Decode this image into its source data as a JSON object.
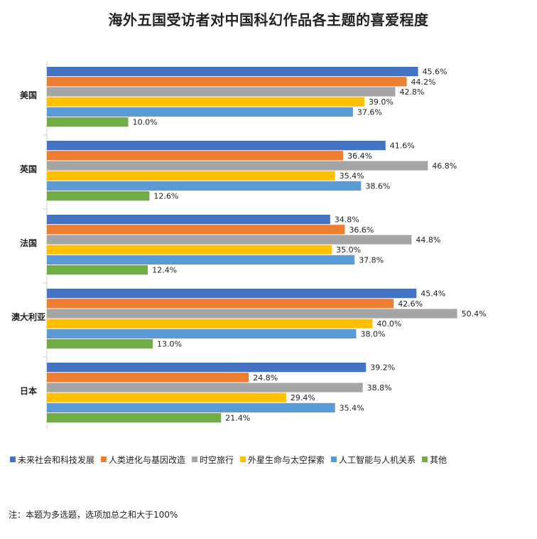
{
  "chart_data": {
    "type": "bar",
    "orientation": "horizontal",
    "title": "海外五国受访者对中国科幻作品各主题的喜爱程度",
    "categories": [
      "美国",
      "英国",
      "法国",
      "澳大利亚",
      "日本"
    ],
    "series": [
      {
        "name": "未来社会和科技发展",
        "color": "#4472C4",
        "values": [
          45.6,
          41.6,
          34.8,
          45.4,
          39.2
        ],
        "labels": [
          "45.6%",
          "41.6%",
          "34.8%",
          "45.4%",
          "39.2%"
        ]
      },
      {
        "name": "人类进化与基因改造",
        "color": "#ED7D31",
        "values": [
          44.2,
          36.4,
          36.6,
          42.6,
          24.8
        ],
        "labels": [
          "44.2%",
          "36.4%",
          "36.6%",
          "42.6%",
          "24.8%"
        ]
      },
      {
        "name": "时空旅行",
        "color": "#A5A5A5",
        "values": [
          42.8,
          46.8,
          44.8,
          50.4,
          38.8
        ],
        "labels": [
          "42.8%",
          "46.8%",
          "44.8%",
          "50.4%",
          "38.8%"
        ]
      },
      {
        "name": "外星生命与太空探索",
        "color": "#FFC000",
        "values": [
          39.0,
          35.4,
          35.0,
          40.0,
          29.4
        ],
        "labels": [
          "39.0%",
          "35.4%",
          "35.0%",
          "40.0%",
          "29.4%"
        ]
      },
      {
        "name": "人工智能与人机关系",
        "color": "#5B9BD5",
        "values": [
          37.6,
          38.6,
          37.8,
          38.0,
          35.4
        ],
        "labels": [
          "37.6%",
          "38.6%",
          "37.8%",
          "38.0%",
          "35.4%"
        ]
      },
      {
        "name": "其他",
        "color": "#70AD47",
        "values": [
          10.0,
          12.6,
          12.4,
          13.0,
          21.4
        ],
        "labels": [
          "10.0%",
          "12.6%",
          "12.4%",
          "13.0%",
          "21.4%"
        ]
      }
    ],
    "xlim": [
      0,
      55
    ],
    "unit": "%",
    "legend_position": "bottom"
  },
  "footnote": "注：本题为多选题，选项加总之和大于100%"
}
